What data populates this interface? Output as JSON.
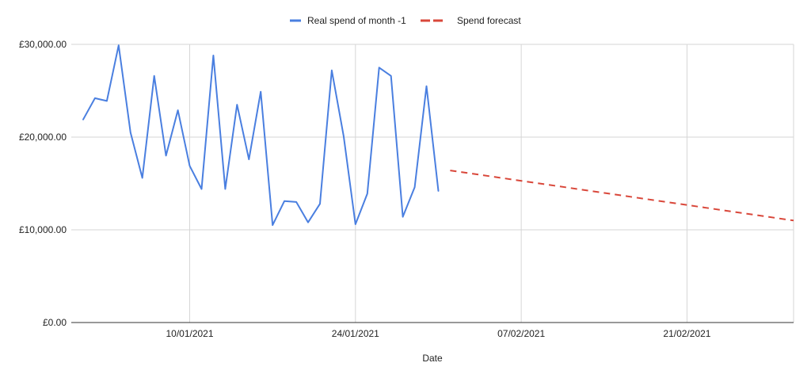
{
  "chart_data": {
    "type": "line",
    "title": "",
    "xlabel": "Date",
    "ylabel": "",
    "x_axis_type": "date",
    "xlim": [
      "2020-12-31",
      "2021-03-02"
    ],
    "ylim": [
      0,
      30000
    ],
    "y_ticks": [
      0,
      10000,
      20000,
      30000
    ],
    "y_tick_labels": [
      "£0.00",
      "£10,000.00",
      "£20,000.00",
      "£30,000.00"
    ],
    "x_ticks": [
      "2021-01-10",
      "2021-01-24",
      "2021-02-07",
      "2021-02-21"
    ],
    "x_tick_labels": [
      "10/01/2021",
      "24/01/2021",
      "07/02/2021",
      "21/02/2021"
    ],
    "grid": true,
    "legend_position": "top-center",
    "series": [
      {
        "name": "Real spend of month -1",
        "color": "#4a7fe0",
        "style": "solid",
        "x": [
          "2021-01-01",
          "2021-01-02",
          "2021-01-03",
          "2021-01-04",
          "2021-01-05",
          "2021-01-06",
          "2021-01-07",
          "2021-01-08",
          "2021-01-09",
          "2021-01-10",
          "2021-01-11",
          "2021-01-12",
          "2021-01-13",
          "2021-01-14",
          "2021-01-15",
          "2021-01-16",
          "2021-01-17",
          "2021-01-18",
          "2021-01-19",
          "2021-01-20",
          "2021-01-21",
          "2021-01-22",
          "2021-01-23",
          "2021-01-24",
          "2021-01-25",
          "2021-01-26",
          "2021-01-27",
          "2021-01-28",
          "2021-01-29",
          "2021-01-30",
          "2021-01-31"
        ],
        "values": [
          21900,
          24200,
          23900,
          29900,
          20500,
          15600,
          26600,
          18000,
          22900,
          16900,
          14400,
          28800,
          14400,
          23500,
          17600,
          24900,
          10500,
          13100,
          13000,
          10800,
          12800,
          27200,
          20100,
          10600,
          13900,
          27500,
          26600,
          11400,
          14600,
          25500,
          14200
        ]
      },
      {
        "name": "Spend forecast",
        "color": "#d9473a",
        "style": "dashed",
        "x": [
          "2021-02-01",
          "2021-03-02"
        ],
        "values": [
          16400,
          11000
        ]
      }
    ]
  }
}
